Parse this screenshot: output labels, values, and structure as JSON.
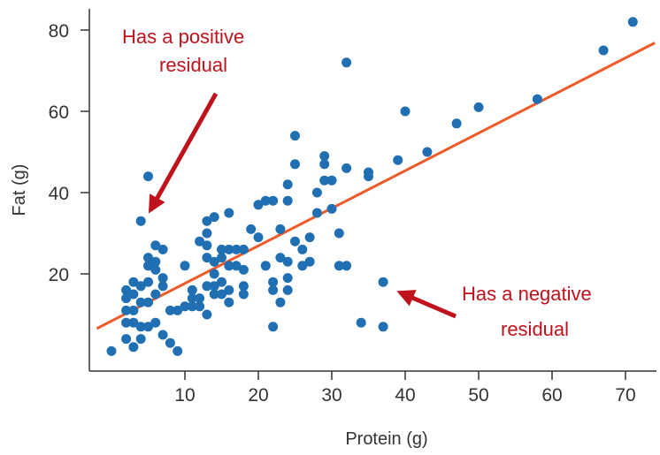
{
  "chart_data": {
    "type": "scatter",
    "title": "",
    "xlabel": "Protein (g)",
    "ylabel": "Fat (g)",
    "xlim": [
      -2,
      74
    ],
    "ylim": [
      -4,
      86
    ],
    "xticks": [
      10,
      20,
      30,
      40,
      50,
      60,
      70
    ],
    "yticks": [
      20,
      40,
      60,
      80
    ],
    "grid": false,
    "point_color": "#1f6fb2",
    "line_color": "#f05a28",
    "annotation_color": "#c0121c",
    "regression_line": {
      "intercept": 8.4,
      "slope": 0.925
    },
    "points": [
      [
        0,
        1
      ],
      [
        2,
        4
      ],
      [
        2,
        8
      ],
      [
        2,
        11
      ],
      [
        2,
        14
      ],
      [
        2,
        16
      ],
      [
        3,
        2
      ],
      [
        3,
        8
      ],
      [
        3,
        11
      ],
      [
        3,
        15
      ],
      [
        3,
        18
      ],
      [
        4,
        4
      ],
      [
        4,
        7
      ],
      [
        4,
        13
      ],
      [
        4,
        17
      ],
      [
        4,
        33
      ],
      [
        5,
        7
      ],
      [
        5,
        13
      ],
      [
        5,
        18
      ],
      [
        5,
        22
      ],
      [
        5,
        24
      ],
      [
        5,
        44
      ],
      [
        6,
        8
      ],
      [
        6,
        15
      ],
      [
        6,
        21
      ],
      [
        6,
        23
      ],
      [
        6,
        27
      ],
      [
        7,
        5
      ],
      [
        7,
        17
      ],
      [
        7,
        19
      ],
      [
        7,
        26
      ],
      [
        8,
        3
      ],
      [
        8,
        11
      ],
      [
        9,
        1
      ],
      [
        9,
        11
      ],
      [
        10,
        12
      ],
      [
        10,
        22
      ],
      [
        11,
        12
      ],
      [
        11,
        14
      ],
      [
        11,
        16
      ],
      [
        12,
        12
      ],
      [
        12,
        14
      ],
      [
        12,
        28
      ],
      [
        13,
        10
      ],
      [
        13,
        17
      ],
      [
        13,
        24
      ],
      [
        13,
        27
      ],
      [
        13,
        30
      ],
      [
        13,
        33
      ],
      [
        14,
        15
      ],
      [
        14,
        17
      ],
      [
        14,
        20
      ],
      [
        14,
        23
      ],
      [
        14,
        34
      ],
      [
        15,
        15
      ],
      [
        15,
        18
      ],
      [
        15,
        24
      ],
      [
        15,
        26
      ],
      [
        16,
        13
      ],
      [
        16,
        16
      ],
      [
        16,
        22
      ],
      [
        16,
        26
      ],
      [
        16,
        35
      ],
      [
        17,
        22
      ],
      [
        17,
        26
      ],
      [
        18,
        15
      ],
      [
        18,
        17
      ],
      [
        18,
        21
      ],
      [
        18,
        26
      ],
      [
        19,
        31
      ],
      [
        20,
        37
      ],
      [
        20,
        29
      ],
      [
        21,
        22
      ],
      [
        21,
        38
      ],
      [
        22,
        7
      ],
      [
        22,
        16
      ],
      [
        22,
        18
      ],
      [
        22,
        38
      ],
      [
        23,
        13
      ],
      [
        23,
        24
      ],
      [
        23,
        31
      ],
      [
        24,
        16
      ],
      [
        24,
        19
      ],
      [
        24,
        23
      ],
      [
        24,
        38
      ],
      [
        24,
        42
      ],
      [
        25,
        28
      ],
      [
        25,
        47
      ],
      [
        25,
        54
      ],
      [
        26,
        22
      ],
      [
        26,
        26
      ],
      [
        27,
        29
      ],
      [
        27,
        23
      ],
      [
        28,
        35
      ],
      [
        28,
        40
      ],
      [
        29,
        43
      ],
      [
        29,
        47
      ],
      [
        29,
        49
      ],
      [
        30,
        36
      ],
      [
        30,
        43
      ],
      [
        31,
        22
      ],
      [
        31,
        30
      ],
      [
        32,
        22
      ],
      [
        32,
        46
      ],
      [
        32,
        72
      ],
      [
        34,
        8
      ],
      [
        35,
        44
      ],
      [
        35,
        45
      ],
      [
        37,
        7
      ],
      [
        37,
        18
      ],
      [
        39,
        48
      ],
      [
        40,
        60
      ],
      [
        43,
        50
      ],
      [
        47,
        57
      ],
      [
        50,
        61
      ],
      [
        58,
        63
      ],
      [
        67,
        75
      ],
      [
        71,
        82
      ]
    ],
    "annotations": [
      {
        "text_lines": [
          "Has a positive",
          "residual"
        ],
        "anchor": "start",
        "points_to": [
          4,
          33
        ]
      },
      {
        "text_lines": [
          "Has a negative",
          "residual"
        ],
        "anchor": "end",
        "points_to": [
          37,
          18
        ]
      }
    ]
  }
}
